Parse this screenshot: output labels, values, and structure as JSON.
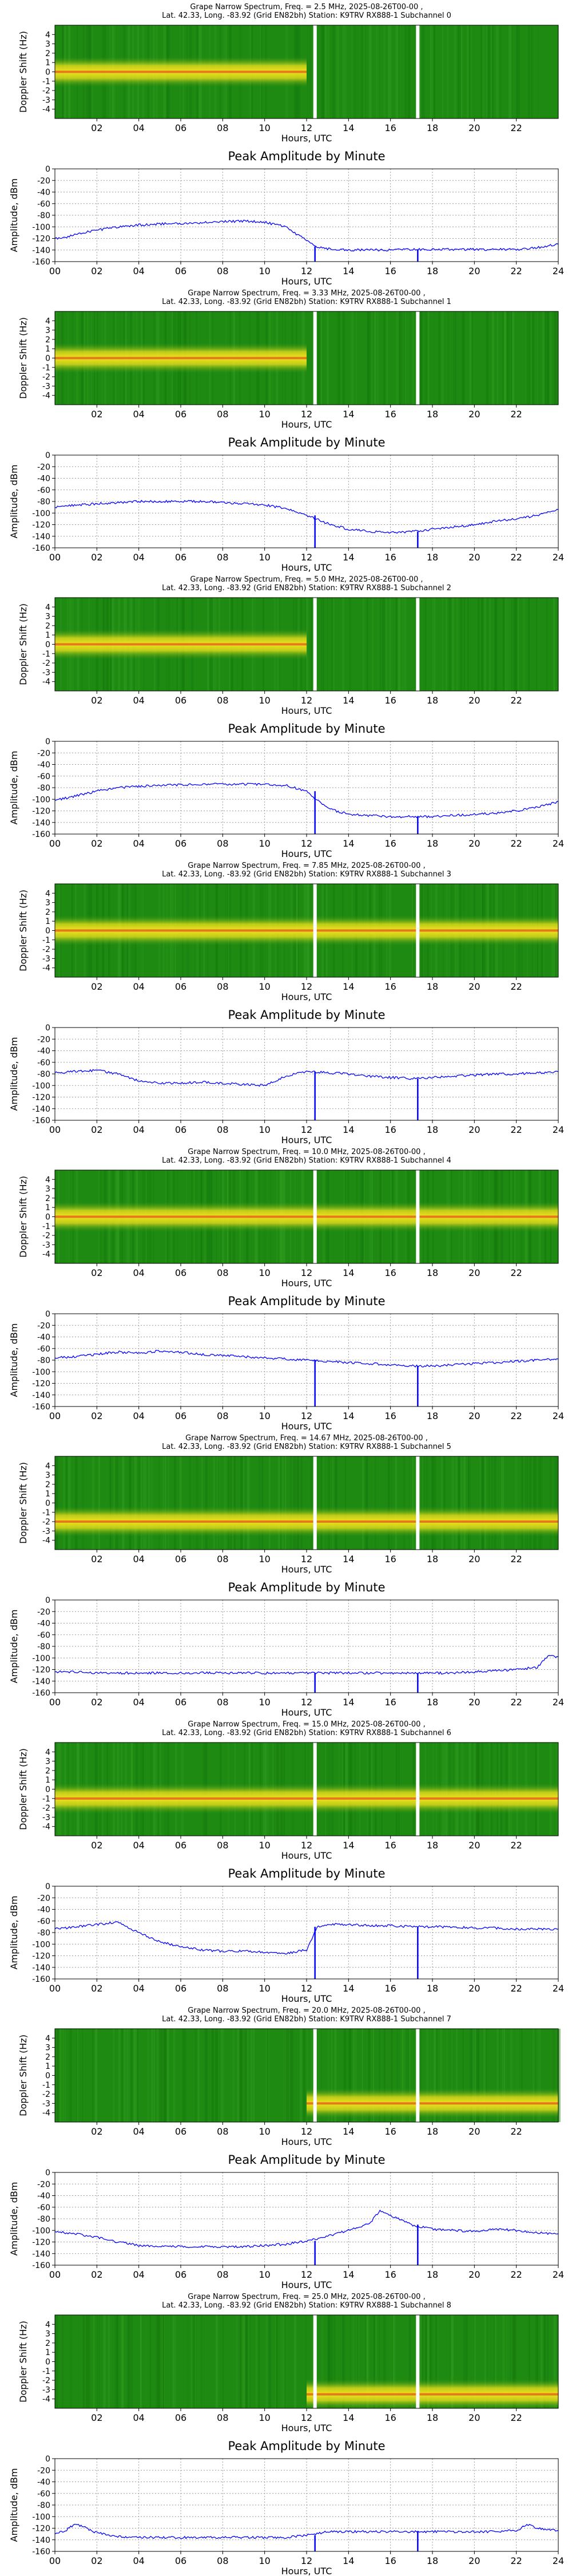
{
  "colors": {
    "spectrum_background": "#1e8a12",
    "spectrum_band": "#f2e21c",
    "spectrum_core": "#d9241c",
    "line": "#0000ff",
    "gap": "#ffffff",
    "grid": "#9a9a9a"
  },
  "x_axis": {
    "label": "Hours, UTC",
    "range": [
      0,
      24
    ],
    "spectrum_ticks": [
      "02",
      "04",
      "06",
      "08",
      "10",
      "12",
      "14",
      "16",
      "18",
      "20",
      "22"
    ],
    "amplitude_ticks": [
      "00",
      "02",
      "04",
      "06",
      "08",
      "10",
      "12",
      "14",
      "16",
      "18",
      "20",
      "22",
      "24"
    ]
  },
  "spectrum_axis": {
    "label": "Doppler Shift (Hz)",
    "range": [
      -5,
      5
    ],
    "ticks": [
      "4",
      "3",
      "2",
      "1",
      "0",
      "-1",
      "-2",
      "-3",
      "-4"
    ]
  },
  "amplitude_axis": {
    "label": "Amplitude, dBm",
    "range": [
      -160,
      0
    ],
    "ticks": [
      "0",
      "-20",
      "-40",
      "-60",
      "-80",
      "-100",
      "-120",
      "-140",
      "-160"
    ]
  },
  "data_gaps_hours": [
    12.4,
    17.3
  ],
  "chart_data": [
    {
      "type": "heatmap",
      "title_line1": "Grape Narrow Spectrum, Freq. = 2.5 MHz, 2025-08-26T00-00 ,",
      "title_line2": "Lat.  42.33, Long. -83.92 (Grid EN82bh) Station: K9TRV RX888-1 Subchannel 0",
      "band_hours": [
        0,
        12
      ],
      "band_center_hz": 0
    },
    {
      "type": "line",
      "title": "Peak Amplitude by Minute",
      "xlabel": "Hours, UTC",
      "ylabel": "Amplitude, dBm",
      "xlim": [
        0,
        24
      ],
      "ylim": [
        -160,
        0
      ],
      "x": [
        0,
        0.5,
        1,
        2,
        3,
        4,
        5,
        6,
        7,
        8,
        9,
        10,
        11,
        11.5,
        12,
        12.5,
        13,
        14,
        15,
        16,
        17,
        18,
        19,
        20,
        21,
        22,
        23,
        24
      ],
      "y": [
        -120,
        -118,
        -112,
        -106,
        -100,
        -97,
        -95,
        -94,
        -93,
        -91,
        -90,
        -92,
        -100,
        -112,
        -124,
        -134,
        -138,
        -140,
        -140,
        -140,
        -139,
        -139,
        -139,
        -139,
        -139,
        -139,
        -136,
        -130
      ]
    },
    {
      "type": "heatmap",
      "title_line1": "Grape Narrow Spectrum, Freq. = 3.33 MHz, 2025-08-26T00-00 ,",
      "title_line2": "Lat.  42.33, Long. -83.92 (Grid EN82bh) Station: K9TRV RX888-1 Subchannel 1",
      "band_hours": [
        0,
        12
      ],
      "band_center_hz": 0
    },
    {
      "type": "line",
      "title": "Peak Amplitude by Minute",
      "xlabel": "Hours, UTC",
      "ylabel": "Amplitude, dBm",
      "xlim": [
        0,
        24
      ],
      "ylim": [
        -160,
        0
      ],
      "x": [
        0,
        1,
        2,
        3,
        4,
        5,
        6,
        7,
        8,
        9,
        10,
        11,
        12,
        13,
        14,
        15,
        16,
        17,
        18,
        19,
        20,
        21,
        22,
        23,
        24
      ],
      "y": [
        -90,
        -86,
        -84,
        -82,
        -80,
        -80,
        -80,
        -80,
        -82,
        -84,
        -86,
        -92,
        -104,
        -118,
        -128,
        -132,
        -134,
        -132,
        -128,
        -124,
        -120,
        -114,
        -110,
        -104,
        -94
      ]
    },
    {
      "type": "heatmap",
      "title_line1": "Grape Narrow Spectrum, Freq. = 5.0 MHz, 2025-08-26T00-00 ,",
      "title_line2": "Lat.  42.33, Long. -83.92 (Grid EN82bh) Station: K9TRV RX888-1 Subchannel 2",
      "band_hours": [
        0,
        12
      ],
      "band_center_hz": 0
    },
    {
      "type": "line",
      "title": "Peak Amplitude by Minute",
      "xlabel": "Hours, UTC",
      "ylabel": "Amplitude, dBm",
      "xlim": [
        0,
        24
      ],
      "ylim": [
        -160,
        0
      ],
      "x": [
        0,
        1,
        2,
        3,
        4,
        5,
        6,
        7,
        8,
        9,
        10,
        11,
        12,
        13,
        14,
        15,
        16,
        17,
        18,
        19,
        20,
        21,
        22,
        23,
        24
      ],
      "y": [
        -102,
        -94,
        -86,
        -80,
        -78,
        -76,
        -75,
        -74,
        -74,
        -74,
        -74,
        -76,
        -86,
        -116,
        -126,
        -128,
        -130,
        -130,
        -130,
        -128,
        -126,
        -124,
        -120,
        -114,
        -104
      ]
    },
    {
      "type": "heatmap",
      "title_line1": "Grape Narrow Spectrum, Freq. = 7.85 MHz, 2025-08-26T00-00 ,",
      "title_line2": "Lat.  42.33, Long. -83.92 (Grid EN82bh) Station: K9TRV RX888-1 Subchannel 3",
      "band_hours": [
        0,
        24
      ],
      "band_center_hz": 0
    },
    {
      "type": "line",
      "title": "Peak Amplitude by Minute",
      "xlabel": "Hours, UTC",
      "ylabel": "Amplitude, dBm",
      "xlim": [
        0,
        24
      ],
      "ylim": [
        -160,
        0
      ],
      "x": [
        0,
        1,
        2,
        3,
        4,
        5,
        6,
        7,
        8,
        9,
        10,
        11,
        12,
        13,
        14,
        15,
        16,
        17,
        18,
        19,
        20,
        21,
        22,
        23,
        24
      ],
      "y": [
        -78,
        -76,
        -74,
        -80,
        -92,
        -96,
        -96,
        -94,
        -96,
        -98,
        -100,
        -84,
        -76,
        -78,
        -80,
        -84,
        -86,
        -88,
        -86,
        -84,
        -82,
        -80,
        -80,
        -78,
        -76
      ]
    },
    {
      "type": "heatmap",
      "title_line1": "Grape Narrow Spectrum, Freq. = 10.0 MHz, 2025-08-26T00-00 ,",
      "title_line2": "Lat.  42.33, Long. -83.92 (Grid EN82bh) Station: K9TRV RX888-1 Subchannel 4",
      "band_hours": [
        0,
        24
      ],
      "band_center_hz": 0
    },
    {
      "type": "line",
      "title": "Peak Amplitude by Minute",
      "xlabel": "Hours, UTC",
      "ylabel": "Amplitude, dBm",
      "xlim": [
        0,
        24
      ],
      "ylim": [
        -160,
        0
      ],
      "x": [
        0,
        1,
        2,
        3,
        4,
        5,
        6,
        7,
        8,
        9,
        10,
        11,
        12,
        13,
        14,
        15,
        16,
        17,
        18,
        19,
        20,
        21,
        22,
        23,
        24
      ],
      "y": [
        -76,
        -74,
        -70,
        -66,
        -68,
        -64,
        -66,
        -70,
        -72,
        -74,
        -76,
        -78,
        -80,
        -82,
        -84,
        -86,
        -88,
        -90,
        -90,
        -88,
        -86,
        -84,
        -82,
        -80,
        -78
      ]
    },
    {
      "type": "heatmap",
      "title_line1": "Grape Narrow Spectrum, Freq. = 14.67 MHz, 2025-08-26T00-00 ,",
      "title_line2": "Lat.  42.33, Long. -83.92 (Grid EN82bh) Station: K9TRV RX888-1 Subchannel 5",
      "band_hours": [
        0,
        24
      ],
      "band_center_hz": -2
    },
    {
      "type": "line",
      "title": "Peak Amplitude by Minute",
      "xlabel": "Hours, UTC",
      "ylabel": "Amplitude, dBm",
      "xlim": [
        0,
        24
      ],
      "ylim": [
        -160,
        0
      ],
      "x": [
        0,
        1,
        2,
        3,
        4,
        5,
        6,
        7,
        8,
        9,
        10,
        11,
        12,
        13,
        14,
        15,
        16,
        17,
        18,
        19,
        20,
        21,
        22,
        23,
        23.5,
        24
      ],
      "y": [
        -124,
        -124,
        -126,
        -126,
        -126,
        -126,
        -126,
        -126,
        -126,
        -126,
        -126,
        -126,
        -126,
        -126,
        -126,
        -126,
        -126,
        -126,
        -126,
        -126,
        -124,
        -122,
        -120,
        -116,
        -96,
        -98
      ]
    },
    {
      "type": "heatmap",
      "title_line1": "Grape Narrow Spectrum, Freq. = 15.0 MHz, 2025-08-26T00-00 ,",
      "title_line2": "Lat.  42.33, Long. -83.92 (Grid EN82bh) Station: K9TRV RX888-1 Subchannel 6",
      "band_hours": [
        0,
        24
      ],
      "band_center_hz": -1
    },
    {
      "type": "line",
      "title": "Peak Amplitude by Minute",
      "xlabel": "Hours, UTC",
      "ylabel": "Amplitude, dBm",
      "xlim": [
        0,
        24
      ],
      "ylim": [
        -160,
        0
      ],
      "x": [
        0,
        1,
        2,
        3,
        4,
        5,
        6,
        7,
        8,
        9,
        10,
        11,
        12,
        12.5,
        13,
        14,
        15,
        16,
        17,
        18,
        19,
        20,
        21,
        22,
        23,
        24
      ],
      "y": [
        -74,
        -70,
        -66,
        -62,
        -80,
        -96,
        -104,
        -110,
        -112,
        -112,
        -114,
        -116,
        -110,
        -70,
        -66,
        -66,
        -68,
        -68,
        -70,
        -70,
        -70,
        -72,
        -72,
        -74,
        -74,
        -74
      ]
    },
    {
      "type": "heatmap",
      "title_line1": "Grape Narrow Spectrum, Freq. = 20.0 MHz, 2025-08-26T00-00 ,",
      "title_line2": "Lat.  42.33, Long. -83.92 (Grid EN82bh) Station: K9TRV RX888-1 Subchannel 7",
      "band_hours": [
        12,
        24
      ],
      "band_center_hz": -3
    },
    {
      "type": "line",
      "title": "Peak Amplitude by Minute",
      "xlabel": "Hours, UTC",
      "ylabel": "Amplitude, dBm",
      "xlim": [
        0,
        24
      ],
      "ylim": [
        -160,
        0
      ],
      "x": [
        0,
        1,
        2,
        3,
        4,
        5,
        6,
        7,
        8,
        9,
        10,
        11,
        12,
        13,
        14,
        15,
        15.5,
        16,
        17,
        18,
        19,
        20,
        21,
        22,
        23,
        24
      ],
      "y": [
        -102,
        -106,
        -112,
        -120,
        -126,
        -128,
        -128,
        -128,
        -128,
        -128,
        -126,
        -124,
        -118,
        -110,
        -100,
        -88,
        -66,
        -74,
        -90,
        -98,
        -100,
        -102,
        -98,
        -100,
        -104,
        -106
      ]
    },
    {
      "type": "heatmap",
      "title_line1": "Grape Narrow Spectrum, Freq. = 25.0 MHz, 2025-08-26T00-00 ,",
      "title_line2": "Lat.  42.33, Long. -83.92 (Grid EN82bh) Station: K9TRV RX888-1 Subchannel 8",
      "band_hours": [
        12,
        24
      ],
      "band_center_hz": -3.5
    },
    {
      "type": "line",
      "title": "Peak Amplitude by Minute",
      "xlabel": "Hours, UTC",
      "ylabel": "Amplitude, dBm",
      "xlim": [
        0,
        24
      ],
      "ylim": [
        -160,
        0
      ],
      "x": [
        0,
        0.5,
        1,
        2,
        3,
        4,
        5,
        6,
        7,
        8,
        9,
        10,
        11,
        12,
        13,
        14,
        15,
        16,
        17,
        18,
        19,
        20,
        21,
        22,
        22.5,
        23,
        24
      ],
      "y": [
        -130,
        -124,
        -112,
        -128,
        -134,
        -136,
        -136,
        -136,
        -136,
        -136,
        -136,
        -136,
        -136,
        -132,
        -126,
        -126,
        -126,
        -126,
        -126,
        -126,
        -126,
        -126,
        -126,
        -124,
        -114,
        -120,
        -124
      ]
    }
  ]
}
